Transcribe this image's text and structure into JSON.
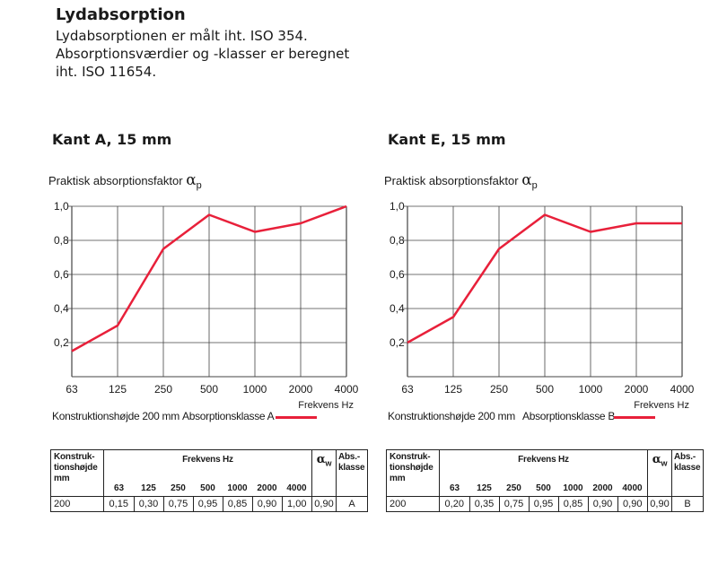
{
  "header": {
    "title": "Lydabsorption",
    "description": [
      "Lydabsorptionen er målt iht. ISO 354.",
      "Absorptionsværdier og -klasser er beregnet",
      "iht. ISO 11654."
    ]
  },
  "colors": {
    "curve": "#e8203a",
    "grid": "#444444",
    "text": "#1a1a1a"
  },
  "common": {
    "ylabel": "Praktisk absorptionsfaktor",
    "ylabel_symbol": "α",
    "ylabel_sub": "p",
    "xlabel": "Frekvens Hz",
    "construction_label": "Konstruktionshøjde 200 mm"
  },
  "table_header": {
    "col1": [
      "Konstruk-",
      "tionshøjde",
      "mm"
    ],
    "freq": "Frekvens Hz",
    "aw_symbol": "α",
    "aw_sub": "w",
    "class": [
      "Abs.-",
      "klasse"
    ]
  },
  "chart_data": [
    {
      "type": "line",
      "title": "Kant A, 15 mm",
      "ylabel": "Praktisk absorptionsfaktor αp",
      "xlabel": "Frekvens Hz",
      "categories": [
        "63",
        "125",
        "250",
        "500",
        "1000",
        "2000",
        "4000"
      ],
      "y_ticks": [
        "1,0",
        "0,8",
        "0,6",
        "0,4",
        "0,2"
      ],
      "ylim": [
        0,
        1.0
      ],
      "grid": true,
      "series": [
        {
          "name": "Absorptionsklasse A",
          "values": [
            0.15,
            0.3,
            0.75,
            0.95,
            0.85,
            0.9,
            1.0
          ]
        }
      ],
      "table": {
        "height": "200",
        "values": [
          "0,15",
          "0,30",
          "0,75",
          "0,95",
          "0,85",
          "0,90",
          "1,00"
        ],
        "aw": "0,90",
        "class": "A"
      }
    },
    {
      "type": "line",
      "title": "Kant E, 15 mm",
      "ylabel": "Praktisk absorptionsfaktor αp",
      "xlabel": "Frekvens Hz",
      "categories": [
        "63",
        "125",
        "250",
        "500",
        "1000",
        "2000",
        "4000"
      ],
      "y_ticks": [
        "1,0",
        "0,8",
        "0,6",
        "0,4",
        "0,2"
      ],
      "ylim": [
        0,
        1.0
      ],
      "grid": true,
      "series": [
        {
          "name": "Absorptionsklasse B",
          "values": [
            0.2,
            0.35,
            0.75,
            0.95,
            0.85,
            0.9,
            0.9
          ]
        }
      ],
      "table": {
        "height": "200",
        "values": [
          "0,20",
          "0,35",
          "0,75",
          "0,95",
          "0,85",
          "0,90",
          "0,90"
        ],
        "aw": "0,90",
        "class": "B"
      }
    }
  ]
}
